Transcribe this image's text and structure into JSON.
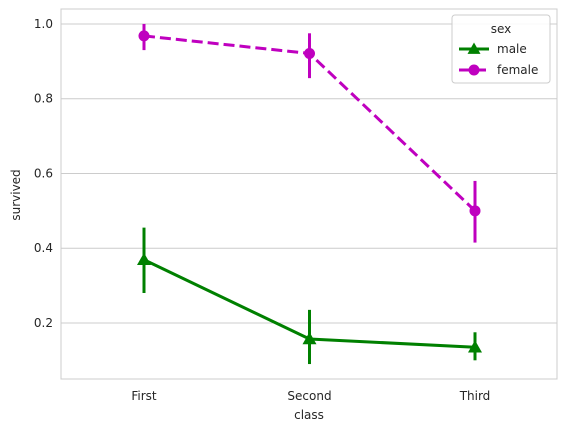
{
  "chart_data": {
    "type": "line",
    "xlabel": "class",
    "ylabel": "survived",
    "categories": [
      "First",
      "Second",
      "Third"
    ],
    "ylim": [
      0.05,
      1.04
    ],
    "yticks": [
      0.2,
      0.4,
      0.6,
      0.8,
      1.0
    ],
    "ytick_labels": [
      "0.2",
      "0.4",
      "0.6",
      "0.8",
      "1.0"
    ],
    "grid": "horizontal",
    "legend": {
      "title": "sex",
      "placement": "top-right"
    },
    "series": [
      {
        "name": "male",
        "color": "#008000",
        "marker": "triangle",
        "linestyle": "solid",
        "values": [
          0.369,
          0.157,
          0.135
        ],
        "ci_low": [
          0.28,
          0.09,
          0.1
        ],
        "ci_high": [
          0.455,
          0.235,
          0.175
        ]
      },
      {
        "name": "female",
        "color": "#bf00bf",
        "marker": "circle",
        "linestyle": "dashed",
        "values": [
          0.968,
          0.921,
          0.5
        ],
        "ci_low": [
          0.93,
          0.855,
          0.415
        ],
        "ci_high": [
          1.0,
          0.975,
          0.58
        ]
      }
    ]
  }
}
